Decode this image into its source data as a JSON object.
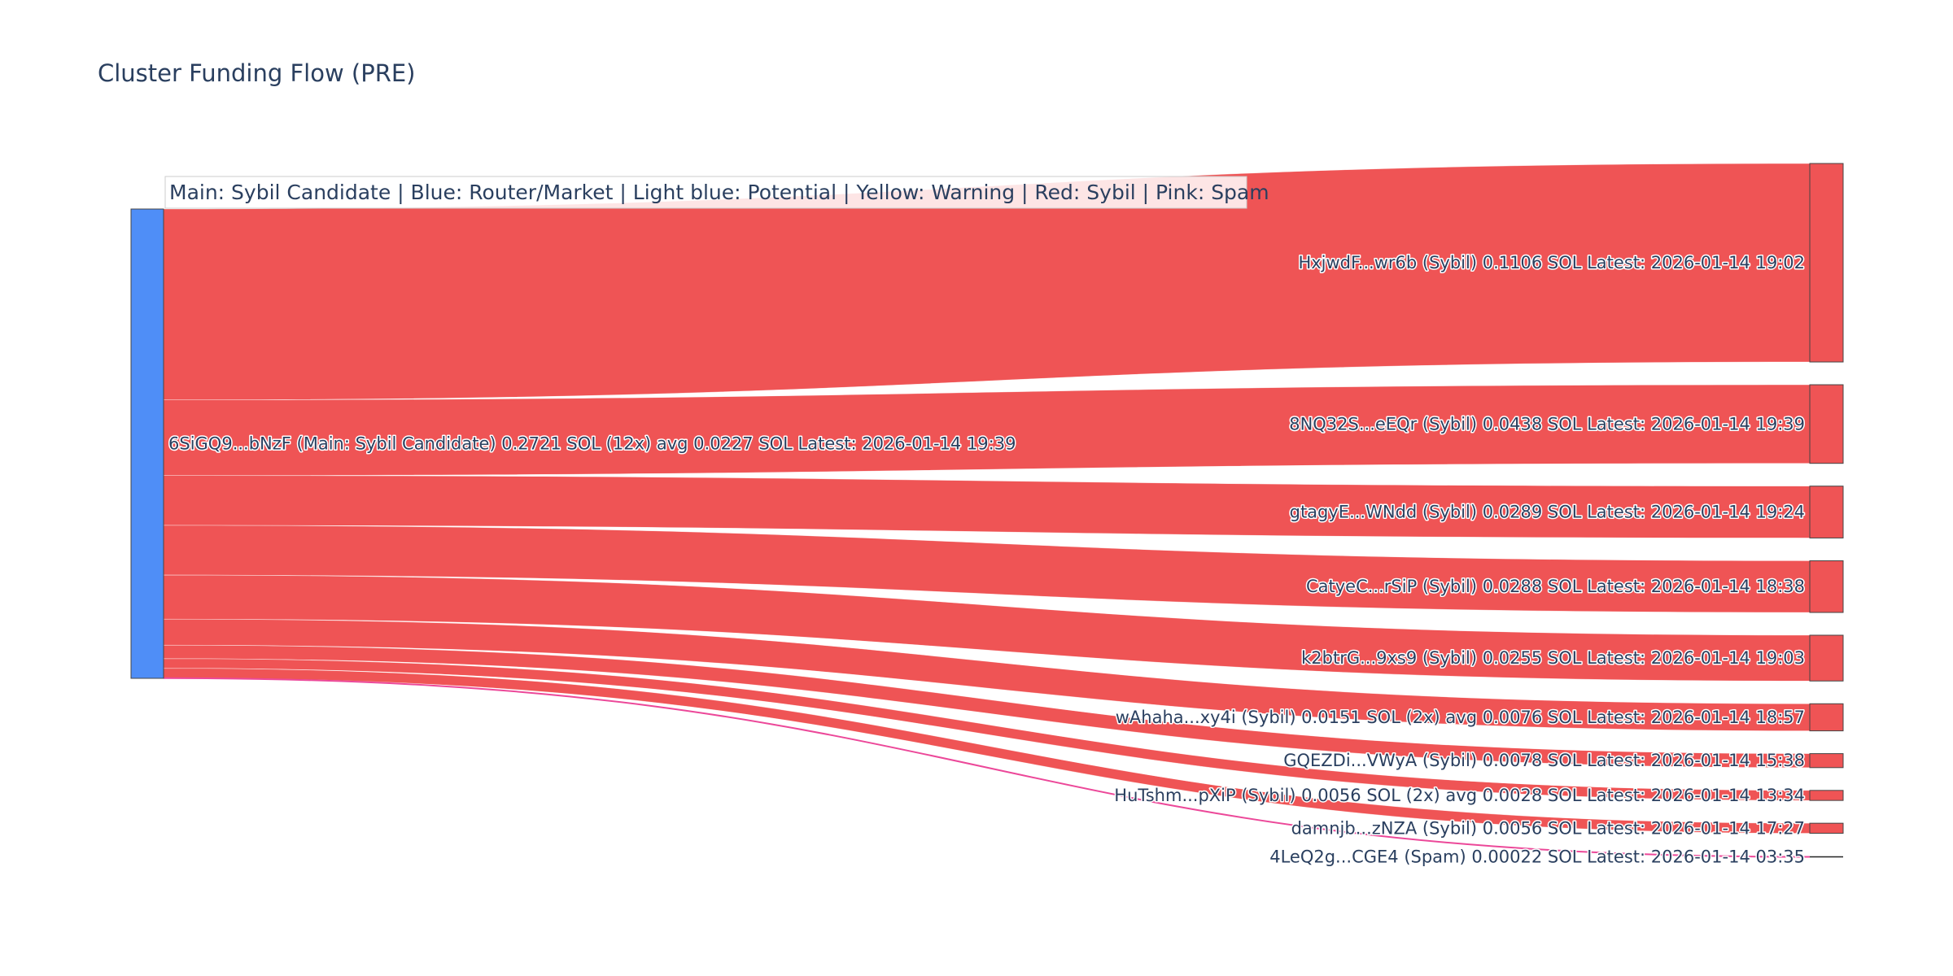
{
  "chart_data": {
    "type": "sankey",
    "title": "Cluster Funding Flow (PRE)",
    "annotation": "Main: Sybil Candidate  |  Blue: Router/Market | Light blue: Potential | Yellow: Warning | Red: Sybil | Pink: Spam",
    "source": {
      "label": "6SiGQ9...bNzF (Main: Sybil Candidate) 0.2721 SOL (12x) avg 0.0227 SOL Latest: 2026-01-14 19:39",
      "value": 0.2721,
      "color": "#4f8ef7"
    },
    "targets": [
      {
        "label": "HxjwdF...wr6b (Sybil) 0.1106 SOL Latest: 2026-01-14 19:02",
        "value": 0.1106,
        "category": "Sybil"
      },
      {
        "label": "8NQ32S...eEQr (Sybil) 0.0438 SOL Latest: 2026-01-14 19:39",
        "value": 0.0438,
        "category": "Sybil"
      },
      {
        "label": "gtagyE...WNdd (Sybil) 0.0289 SOL Latest: 2026-01-14 19:24",
        "value": 0.0289,
        "category": "Sybil"
      },
      {
        "label": "CatyeC...rSiP (Sybil) 0.0288 SOL Latest: 2026-01-14 18:38",
        "value": 0.0288,
        "category": "Sybil"
      },
      {
        "label": "k2btrG...9xs9 (Sybil) 0.0255 SOL Latest: 2026-01-14 19:03",
        "value": 0.0255,
        "category": "Sybil"
      },
      {
        "label": "wAhaha...xy4i (Sybil) 0.0151 SOL (2x) avg 0.0076 SOL Latest: 2026-01-14 18:57",
        "value": 0.0151,
        "category": "Sybil"
      },
      {
        "label": "GQEZDi...VWyA (Sybil) 0.0078 SOL Latest: 2026-01-14 15:38",
        "value": 0.0078,
        "category": "Sybil"
      },
      {
        "label": "HuTshm...pXiP (Sybil) 0.0056 SOL (2x) avg 0.0028 SOL Latest: 2026-01-14 13:34",
        "value": 0.0056,
        "category": "Sybil"
      },
      {
        "label": "damnjb...zNZA (Sybil) 0.0056 SOL Latest: 2026-01-14 17:27",
        "value": 0.0056,
        "category": "Sybil"
      },
      {
        "label": "4LeQ2g...CGE4 (Spam) 0.00022 SOL Latest: 2026-01-14 03:35",
        "value": 0.00022,
        "category": "Spam"
      }
    ],
    "colors": {
      "Sybil": "#ef5455",
      "Spam": "#ec4899",
      "source": "#4f8ef7",
      "text": "#2a3f5f"
    }
  }
}
